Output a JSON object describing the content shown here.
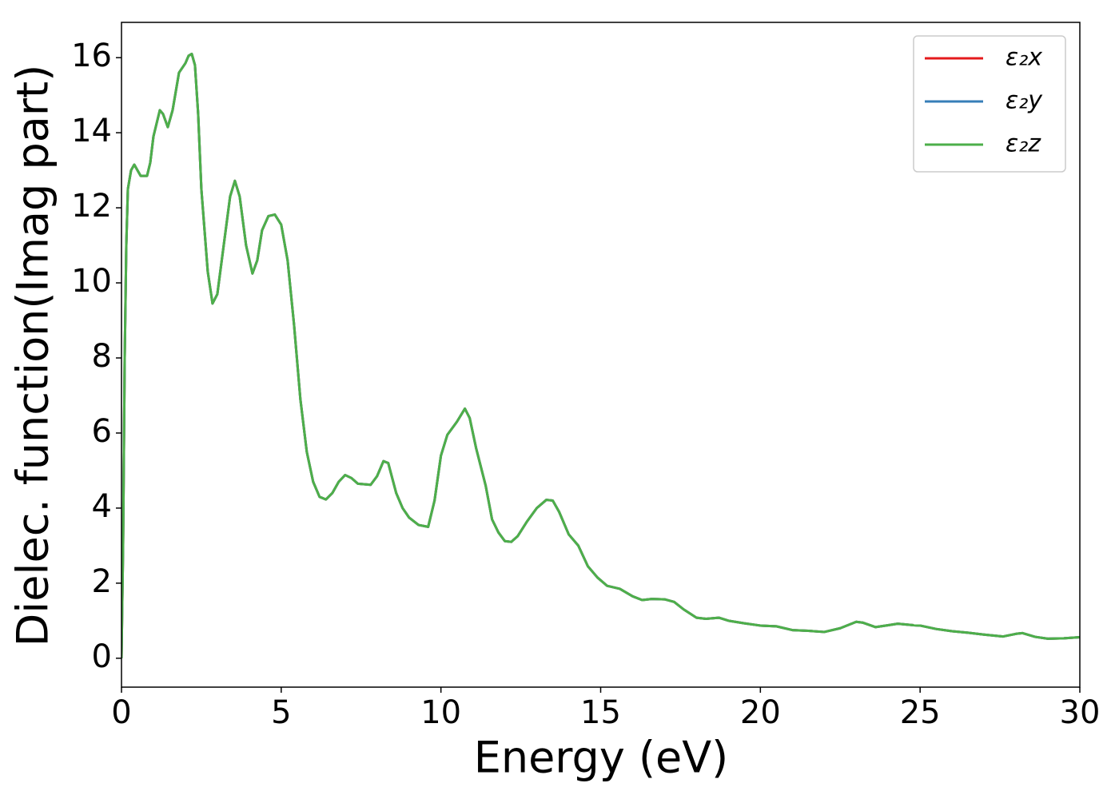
{
  "chart_data": {
    "type": "line",
    "xlabel": "Energy (eV)",
    "ylabel": "Dielec. function(Imag part)",
    "xlim": [
      0,
      30
    ],
    "ylim": [
      -0.77,
      16.94
    ],
    "xticks": [
      0,
      5,
      10,
      15,
      20,
      25,
      30
    ],
    "yticks": [
      0,
      2,
      4,
      6,
      8,
      10,
      12,
      14,
      16
    ],
    "legend": "upper right",
    "x": [
      0,
      0.05,
      0.1,
      0.15,
      0.2,
      0.3,
      0.4,
      0.5,
      0.6,
      0.8,
      0.9,
      1.0,
      1.2,
      1.3,
      1.45,
      1.6,
      1.8,
      2.0,
      2.1,
      2.2,
      2.3,
      2.4,
      2.5,
      2.7,
      2.85,
      3.0,
      3.2,
      3.4,
      3.55,
      3.7,
      3.9,
      4.1,
      4.25,
      4.4,
      4.6,
      4.8,
      5.0,
      5.2,
      5.4,
      5.6,
      5.8,
      6.0,
      6.2,
      6.4,
      6.6,
      6.8,
      7.0,
      7.2,
      7.4,
      7.8,
      8.0,
      8.2,
      8.35,
      8.6,
      8.8,
      9.0,
      9.3,
      9.6,
      9.8,
      10.0,
      10.2,
      10.5,
      10.75,
      10.9,
      11.1,
      11.4,
      11.6,
      11.8,
      12.0,
      12.2,
      12.4,
      12.7,
      13.0,
      13.3,
      13.5,
      13.7,
      14.0,
      14.3,
      14.6,
      14.9,
      15.2,
      15.6,
      16.0,
      16.3,
      16.6,
      17.0,
      17.3,
      17.6,
      18.0,
      18.3,
      18.7,
      19.0,
      19.5,
      20.0,
      20.5,
      21.0,
      21.5,
      22.0,
      22.5,
      23.0,
      23.2,
      23.6,
      24.0,
      24.3,
      24.8,
      25.0,
      25.5,
      26.0,
      26.5,
      27.0,
      27.6,
      28.0,
      28.2,
      28.6,
      29.0,
      29.5,
      30.0
    ],
    "series": [
      {
        "name": "ε₂x",
        "color": "#e41a1c",
        "values": [
          0,
          3,
          8,
          11,
          12.5,
          13.0,
          13.15,
          13.0,
          12.85,
          12.85,
          13.2,
          13.9,
          14.6,
          14.5,
          14.15,
          14.6,
          15.6,
          15.85,
          16.05,
          16.1,
          15.8,
          14.5,
          12.5,
          10.3,
          9.45,
          9.7,
          11.0,
          12.3,
          12.72,
          12.3,
          11.0,
          10.25,
          10.6,
          11.4,
          11.78,
          11.82,
          11.55,
          10.6,
          8.9,
          6.9,
          5.5,
          4.7,
          4.3,
          4.23,
          4.4,
          4.7,
          4.88,
          4.8,
          4.65,
          4.62,
          4.85,
          5.25,
          5.2,
          4.4,
          4.0,
          3.75,
          3.55,
          3.5,
          4.2,
          5.4,
          5.95,
          6.3,
          6.65,
          6.4,
          5.6,
          4.6,
          3.7,
          3.35,
          3.12,
          3.1,
          3.25,
          3.65,
          4.0,
          4.22,
          4.2,
          3.9,
          3.3,
          3.0,
          2.45,
          2.15,
          1.93,
          1.85,
          1.65,
          1.55,
          1.58,
          1.57,
          1.5,
          1.3,
          1.08,
          1.05,
          1.08,
          1.0,
          0.93,
          0.87,
          0.85,
          0.75,
          0.73,
          0.7,
          0.8,
          0.97,
          0.95,
          0.83,
          0.88,
          0.92,
          0.88,
          0.87,
          0.78,
          0.72,
          0.68,
          0.63,
          0.58,
          0.65,
          0.67,
          0.57,
          0.52,
          0.53,
          0.56
        ]
      },
      {
        "name": "ε₂y",
        "color": "#377eb8",
        "values": [
          0,
          3,
          8,
          11,
          12.5,
          13.0,
          13.15,
          13.0,
          12.85,
          12.85,
          13.2,
          13.9,
          14.6,
          14.5,
          14.15,
          14.6,
          15.6,
          15.85,
          16.05,
          16.1,
          15.8,
          14.5,
          12.5,
          10.3,
          9.45,
          9.7,
          11.0,
          12.3,
          12.72,
          12.3,
          11.0,
          10.25,
          10.6,
          11.4,
          11.78,
          11.82,
          11.55,
          10.6,
          8.9,
          6.9,
          5.5,
          4.7,
          4.3,
          4.23,
          4.4,
          4.7,
          4.88,
          4.8,
          4.65,
          4.62,
          4.85,
          5.25,
          5.2,
          4.4,
          4.0,
          3.75,
          3.55,
          3.5,
          4.2,
          5.4,
          5.95,
          6.3,
          6.65,
          6.4,
          5.6,
          4.6,
          3.7,
          3.35,
          3.12,
          3.1,
          3.25,
          3.65,
          4.0,
          4.22,
          4.2,
          3.9,
          3.3,
          3.0,
          2.45,
          2.15,
          1.93,
          1.85,
          1.65,
          1.55,
          1.58,
          1.57,
          1.5,
          1.3,
          1.08,
          1.05,
          1.08,
          1.0,
          0.93,
          0.87,
          0.85,
          0.75,
          0.73,
          0.7,
          0.8,
          0.97,
          0.95,
          0.83,
          0.88,
          0.92,
          0.88,
          0.87,
          0.78,
          0.72,
          0.68,
          0.63,
          0.58,
          0.65,
          0.67,
          0.57,
          0.52,
          0.53,
          0.56
        ]
      },
      {
        "name": "ε₂z",
        "color": "#4daf4a",
        "values": [
          0,
          3,
          8,
          11,
          12.5,
          13.0,
          13.15,
          13.0,
          12.85,
          12.85,
          13.2,
          13.9,
          14.6,
          14.5,
          14.15,
          14.6,
          15.6,
          15.85,
          16.05,
          16.1,
          15.8,
          14.5,
          12.5,
          10.3,
          9.45,
          9.7,
          11.0,
          12.3,
          12.72,
          12.3,
          11.0,
          10.25,
          10.6,
          11.4,
          11.78,
          11.82,
          11.55,
          10.6,
          8.9,
          6.9,
          5.5,
          4.7,
          4.3,
          4.23,
          4.4,
          4.7,
          4.88,
          4.8,
          4.65,
          4.62,
          4.85,
          5.25,
          5.2,
          4.4,
          4.0,
          3.75,
          3.55,
          3.5,
          4.2,
          5.4,
          5.95,
          6.3,
          6.65,
          6.4,
          5.6,
          4.6,
          3.7,
          3.35,
          3.12,
          3.1,
          3.25,
          3.65,
          4.0,
          4.22,
          4.2,
          3.9,
          3.3,
          3.0,
          2.45,
          2.15,
          1.93,
          1.85,
          1.65,
          1.55,
          1.58,
          1.57,
          1.5,
          1.3,
          1.08,
          1.05,
          1.08,
          1.0,
          0.93,
          0.87,
          0.85,
          0.75,
          0.73,
          0.7,
          0.8,
          0.97,
          0.95,
          0.83,
          0.88,
          0.92,
          0.88,
          0.87,
          0.78,
          0.72,
          0.68,
          0.63,
          0.58,
          0.65,
          0.67,
          0.57,
          0.52,
          0.53,
          0.56
        ]
      }
    ]
  }
}
